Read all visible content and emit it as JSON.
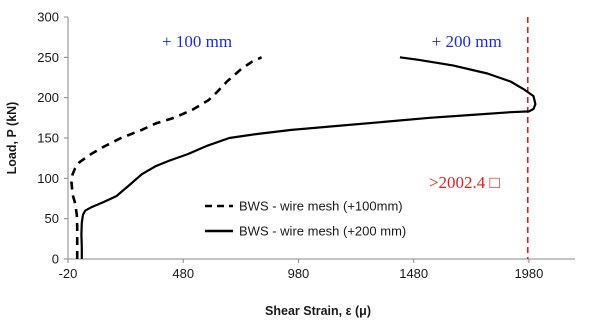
{
  "chart_data": {
    "type": "line",
    "title": "",
    "xlabel": "Shear Strain, ε (μ)",
    "ylabel": "Load, P (kN)",
    "xlim": [
      -20,
      2180
    ],
    "ylim": [
      0,
      300
    ],
    "x_ticks": [
      -20,
      480,
      980,
      1480,
      1980
    ],
    "x_tick_labels": [
      "-20",
      "480",
      "980",
      "1480",
      "1980"
    ],
    "y_ticks": [
      0,
      50,
      100,
      150,
      200,
      250,
      300
    ],
    "y_tick_labels": [
      "0",
      "50",
      "100",
      "150",
      "200",
      "250",
      "300"
    ],
    "grid": false,
    "legend_position": "lower-center",
    "series": [
      {
        "name": "BWS - wire mesh (+100mm)",
        "style": "dashed",
        "color": "#000000",
        "points": [
          [
            20,
            0
          ],
          [
            20,
            40
          ],
          [
            18,
            55
          ],
          [
            10,
            70
          ],
          [
            0,
            80
          ],
          [
            -5,
            95
          ],
          [
            0,
            105
          ],
          [
            10,
            112
          ],
          [
            30,
            120
          ],
          [
            80,
            130
          ],
          [
            140,
            140
          ],
          [
            210,
            150
          ],
          [
            300,
            160
          ],
          [
            360,
            168
          ],
          [
            440,
            175
          ],
          [
            520,
            185
          ],
          [
            590,
            197
          ],
          [
            620,
            205
          ],
          [
            670,
            220
          ],
          [
            730,
            235
          ],
          [
            780,
            245
          ],
          [
            820,
            250
          ]
        ]
      },
      {
        "name": "BWS - wire mesh (+200 mm)",
        "style": "solid",
        "color": "#000000",
        "points": [
          [
            40,
            0
          ],
          [
            40,
            15
          ],
          [
            38,
            30
          ],
          [
            40,
            45
          ],
          [
            45,
            55
          ],
          [
            55,
            60
          ],
          [
            80,
            64
          ],
          [
            130,
            70
          ],
          [
            190,
            78
          ],
          [
            240,
            90
          ],
          [
            300,
            105
          ],
          [
            360,
            115
          ],
          [
            420,
            122
          ],
          [
            500,
            130
          ],
          [
            580,
            140
          ],
          [
            680,
            150
          ],
          [
            800,
            155
          ],
          [
            950,
            160
          ],
          [
            1150,
            165
          ],
          [
            1350,
            170
          ],
          [
            1550,
            175
          ],
          [
            1750,
            179
          ],
          [
            1900,
            182
          ],
          [
            1980,
            183
          ],
          [
            2000,
            186
          ],
          [
            2008,
            192
          ],
          [
            2000,
            202
          ],
          [
            1960,
            210
          ],
          [
            1900,
            220
          ],
          [
            1800,
            230
          ],
          [
            1650,
            240
          ],
          [
            1500,
            247
          ],
          [
            1420,
            250
          ]
        ]
      }
    ],
    "reference_line": {
      "x": 1975,
      "color": "#e02020",
      "style": "dashed"
    },
    "annotations": [
      {
        "text": "+ 100 mm",
        "color": "#1f2bd8",
        "x": 540,
        "y": 263
      },
      {
        "text": "+ 200 mm",
        "color": "#1f2bd8",
        "x": 1710,
        "y": 263
      },
      {
        "text": ">2002.4 □",
        "color": "#e02020",
        "x": 1700,
        "y": 88
      }
    ]
  }
}
